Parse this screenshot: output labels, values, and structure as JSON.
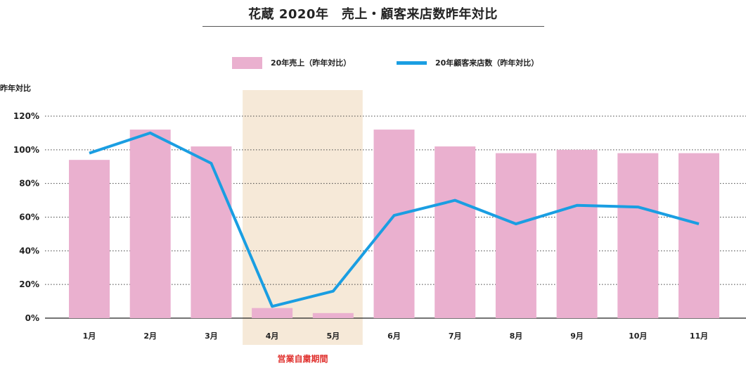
{
  "title": "花蔵 2020年　売上・顧客来店数昨年対比",
  "chart_data": {
    "type": "bar",
    "title": "花蔵 2020年　売上・顧客来店数昨年対比",
    "ylabel": "昨年対比",
    "xlabel": "",
    "ylim": [
      0,
      120
    ],
    "yticks": [
      0,
      20,
      40,
      60,
      80,
      100,
      120
    ],
    "ytick_labels": [
      "0%",
      "20%",
      "40%",
      "60%",
      "80%",
      "100%",
      "120%"
    ],
    "grid": "horizontal dotted",
    "legend_position": "top-center",
    "categories": [
      "1月",
      "2月",
      "3月",
      "4月",
      "5月",
      "6月",
      "7月",
      "8月",
      "9月",
      "10月",
      "11月"
    ],
    "series": [
      {
        "name": "20年売上（昨年対比）",
        "type": "bar",
        "color": "#eab0cf",
        "values": [
          94,
          112,
          102,
          6,
          3,
          112,
          102,
          98,
          100,
          98,
          98
        ]
      },
      {
        "name": "20年顧客来店数（昨年対比）",
        "type": "line",
        "color": "#1a9ee2",
        "values": [
          98,
          110,
          92,
          7,
          16,
          61,
          70,
          56,
          67,
          66,
          56
        ]
      }
    ],
    "highlight": {
      "label": "営業自粛期間",
      "from": "4月",
      "to": "5月",
      "color": "#f6e9d8",
      "label_color": "#e0312e"
    }
  }
}
